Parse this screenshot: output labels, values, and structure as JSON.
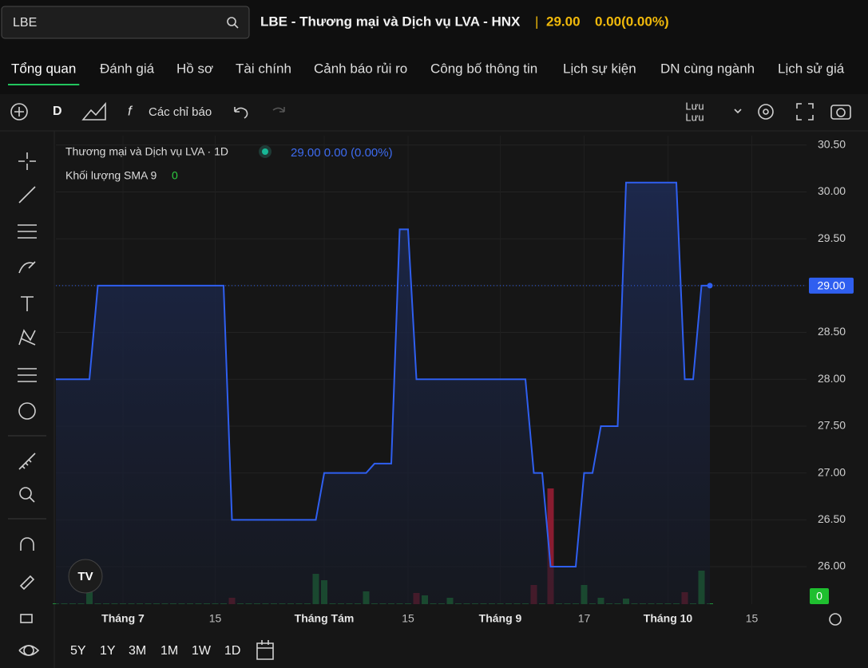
{
  "search": {
    "value": "LBE"
  },
  "header": {
    "title": "LBE - Thương mại và Dịch vụ LVA - HNX",
    "separator": "|",
    "price": "29.00",
    "change": "0.00(0.00%)"
  },
  "tabs": [
    "Tổng quan",
    "Đánh giá",
    "Hồ sơ",
    "Tài chính",
    "Cảnh báo rủi ro",
    "Công bố thông tin",
    "Lịch sự kiện",
    "DN cùng ngành",
    "Lịch sử giá"
  ],
  "toolbar": {
    "interval": "D",
    "indicators": "Các chỉ báo",
    "save": "Lưu",
    "save_sub": "Lưu"
  },
  "legend": {
    "symbol": "Thương mại và Dịch vụ LVA · 1D",
    "values": "29.00  0.00 (0.00%)",
    "volume_name": "Khối lượng SMA 9",
    "volume_value": "0"
  },
  "price_badge": "29.00",
  "volume_badge": "0",
  "ranges": [
    "5Y",
    "1Y",
    "3M",
    "1M",
    "1W",
    "1D"
  ],
  "chart_data": {
    "type": "line",
    "color": "#2f5ff0",
    "up_color": "#1f8f3c",
    "down_color": "#8a1c30",
    "ylim": [
      25.6,
      30.6
    ],
    "yticks": [
      {
        "value": 26,
        "label": "26.00"
      },
      {
        "value": 26.5,
        "label": "26.50"
      },
      {
        "value": 27,
        "label": "27.00"
      },
      {
        "value": 27.5,
        "label": "27.50"
      },
      {
        "value": 28,
        "label": "28.00"
      },
      {
        "value": 28.5,
        "label": "28.50"
      },
      {
        "value": 29,
        "label": "29.00"
      },
      {
        "value": 29.5,
        "label": "29.50"
      },
      {
        "value": 30,
        "label": "30.00"
      },
      {
        "value": 30.5,
        "label": "30.50"
      }
    ],
    "grid": true,
    "categories": [
      null,
      null,
      null,
      null,
      null,
      null,
      null,
      null,
      "Tháng 7",
      null,
      null,
      null,
      null,
      null,
      null,
      null,
      null,
      null,
      null,
      "15",
      null,
      null,
      null,
      null,
      null,
      null,
      null,
      null,
      null,
      null,
      null,
      null,
      "Tháng Tám",
      null,
      null,
      null,
      null,
      null,
      null,
      null,
      null,
      null,
      "15",
      null,
      null,
      null,
      null,
      null,
      null,
      null,
      null,
      null,
      null,
      "Tháng 9",
      null,
      null,
      null,
      null,
      null,
      null,
      null,
      null,
      null,
      "17",
      null,
      null,
      null,
      null,
      null,
      null,
      null,
      null,
      null,
      "Tháng 10",
      null,
      null,
      null,
      null,
      null,
      null,
      null,
      null,
      null,
      "15",
      null,
      null,
      null,
      null,
      null,
      null
    ],
    "values": [
      28,
      28,
      28,
      28,
      28,
      29,
      29,
      29,
      29,
      29,
      29,
      29,
      29,
      29,
      29,
      29,
      29,
      29,
      29,
      29,
      29,
      26.5,
      26.5,
      26.5,
      26.5,
      26.5,
      26.5,
      26.5,
      26.5,
      26.5,
      26.5,
      26.5,
      27,
      27,
      27,
      27,
      27,
      27,
      27.1,
      27.1,
      27.1,
      29.6,
      29.6,
      28,
      28,
      28,
      28,
      28,
      28,
      28,
      28,
      28,
      28,
      28,
      28,
      28,
      28,
      27,
      27,
      26,
      26,
      26,
      26,
      27,
      27,
      27.5,
      27.5,
      27.5,
      30.1,
      30.1,
      30.1,
      30.1,
      30.1,
      30.1,
      30.1,
      28,
      28,
      29,
      29,
      null,
      null,
      null,
      null,
      null,
      null,
      null,
      null,
      null,
      null,
      null
    ],
    "volumes": [
      1,
      1,
      1,
      1,
      18,
      1,
      1,
      1,
      1,
      1,
      1,
      1,
      1,
      1,
      1,
      1,
      1,
      1,
      1,
      1,
      1,
      8,
      1,
      1,
      1,
      1,
      1,
      1,
      1,
      1,
      1,
      38,
      30,
      1,
      1,
      1,
      1,
      16,
      1,
      1,
      1,
      1,
      1,
      14,
      11,
      1,
      1,
      8,
      1,
      1,
      1,
      1,
      1,
      1,
      1,
      1,
      1,
      24,
      1,
      145,
      1,
      1,
      1,
      24,
      1,
      8,
      1,
      1,
      7,
      1,
      1,
      1,
      1,
      1,
      1,
      15,
      1,
      42,
      1,
      null,
      null,
      null,
      null,
      null,
      null,
      null,
      null,
      null,
      null,
      null
    ]
  }
}
